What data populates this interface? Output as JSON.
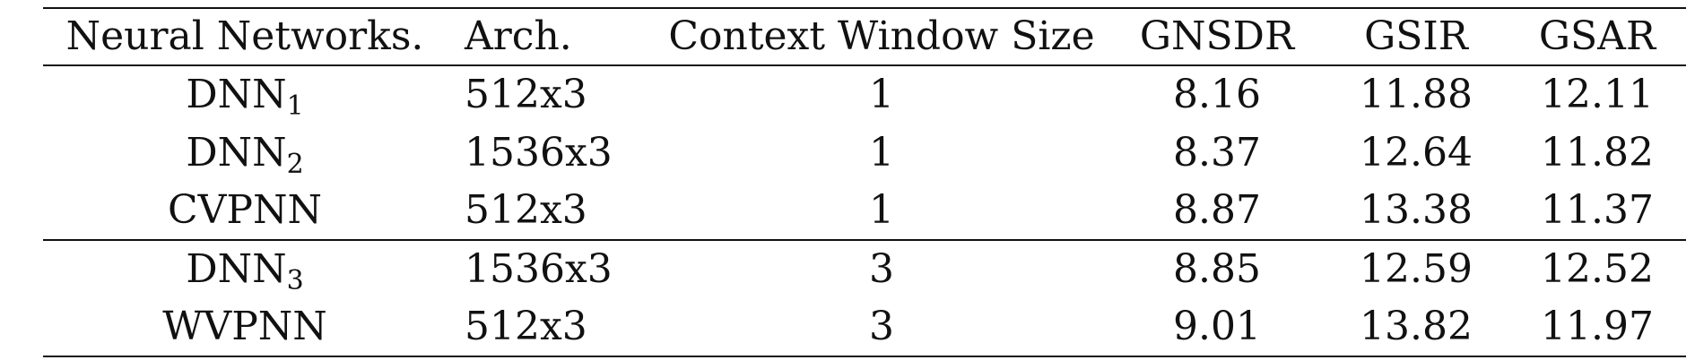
{
  "table": {
    "headers": [
      "Neural Networks.",
      "Arch.",
      "Context Window Size",
      "GNSDR",
      "GSIR",
      "GSAR"
    ],
    "groups": [
      {
        "rows": [
          {
            "network": "DNN",
            "subscript": "1",
            "arch": "512x3",
            "context": "1",
            "gnsdr": "8.16",
            "gsir": "11.88",
            "gsar": "12.11"
          },
          {
            "network": "DNN",
            "subscript": "2",
            "arch": "1536x3",
            "context": "1",
            "gnsdr": "8.37",
            "gsir": "12.64",
            "gsar": "11.82"
          },
          {
            "network": "CVPNN",
            "subscript": "",
            "arch": "512x3",
            "context": "1",
            "gnsdr": "8.87",
            "gsir": "13.38",
            "gsar": "11.37"
          }
        ]
      },
      {
        "rows": [
          {
            "network": "DNN",
            "subscript": "3",
            "arch": "1536x3",
            "context": "3",
            "gnsdr": "8.85",
            "gsir": "12.59",
            "gsar": "12.52"
          },
          {
            "network": "WVPNN",
            "subscript": "",
            "arch": "512x3",
            "context": "3",
            "gnsdr": "9.01",
            "gsir": "13.82",
            "gsar": "11.97"
          }
        ]
      }
    ]
  }
}
